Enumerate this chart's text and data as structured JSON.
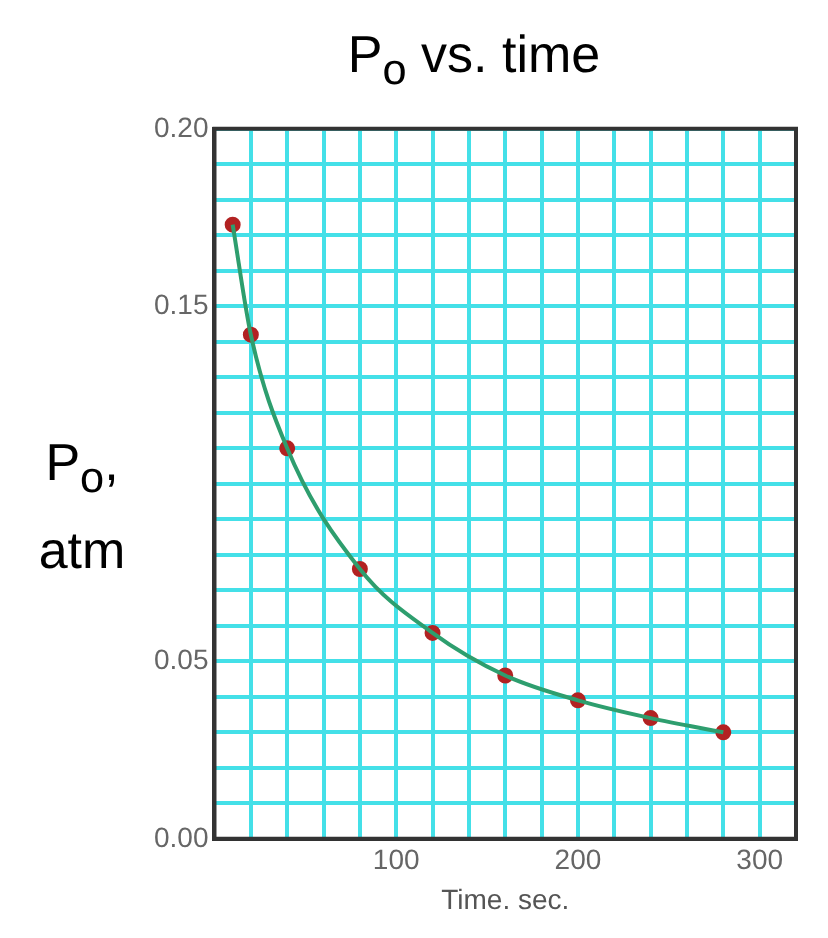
{
  "chart_data": {
    "type": "line",
    "title": "P$_{o}$ vs. time",
    "xlabel": "Time. sec.",
    "ylabel": "P$_{o}$, atm",
    "x": [
      10,
      20,
      40,
      80,
      120,
      160,
      200,
      240,
      280
    ],
    "series": [
      {
        "type": "line",
        "color": "#2e9e6e",
        "marker": "none",
        "values": [
          0.173,
          0.142,
          0.11,
          0.076,
          0.058,
          0.046,
          0.039,
          0.034,
          0.03
        ]
      },
      {
        "type": "scatter",
        "color": "#b22222",
        "marker": "circle",
        "values": [
          0.173,
          0.142,
          0.11,
          0.076,
          0.058,
          0.046,
          0.039,
          0.034,
          0.03
        ]
      }
    ],
    "xlim": [
      0,
      320
    ],
    "ylim": [
      0,
      0.2
    ],
    "xticks": [
      {
        "value": 0,
        "label": null
      },
      {
        "value": 20,
        "label": null
      },
      {
        "value": 40,
        "label": null
      },
      {
        "value": 60,
        "label": null
      },
      {
        "value": 80,
        "label": null
      },
      100,
      {
        "value": 120,
        "label": null
      },
      {
        "value": 140,
        "label": null
      },
      {
        "value": 160,
        "label": null
      },
      {
        "value": 180,
        "label": null
      },
      200,
      {
        "value": 220,
        "label": null
      },
      {
        "value": 240,
        "label": null
      },
      {
        "value": 260,
        "label": null
      },
      {
        "value": 280,
        "label": null
      },
      300,
      {
        "value": 320,
        "label": null
      }
    ],
    "yticks": [
      {
        "value": 0,
        "label": "0.00"
      },
      {
        "value": 0.01,
        "label": null
      },
      {
        "value": 0.02,
        "label": null
      },
      {
        "value": 0.03,
        "label": null
      },
      {
        "value": 0.04,
        "label": null
      },
      0.05,
      {
        "value": 0.06,
        "label": null
      },
      {
        "value": 0.07,
        "label": null
      },
      {
        "value": 0.08,
        "label": null
      },
      {
        "value": 0.09,
        "label": null
      },
      {
        "value": 0.1,
        "label": null
      },
      {
        "value": 0.11,
        "label": null
      },
      {
        "value": 0.12,
        "label": null
      },
      {
        "value": 0.13,
        "label": null
      },
      {
        "value": 0.14,
        "label": null
      },
      0.15,
      {
        "value": 0.16,
        "label": null
      },
      {
        "value": 0.17,
        "label": null
      },
      {
        "value": 0.18,
        "label": null
      },
      {
        "value": 0.19,
        "label": null
      },
      {
        "value": 0.2,
        "label": "0.20"
      }
    ],
    "grid": true,
    "line_style": "solid",
    "legend": false
  }
}
